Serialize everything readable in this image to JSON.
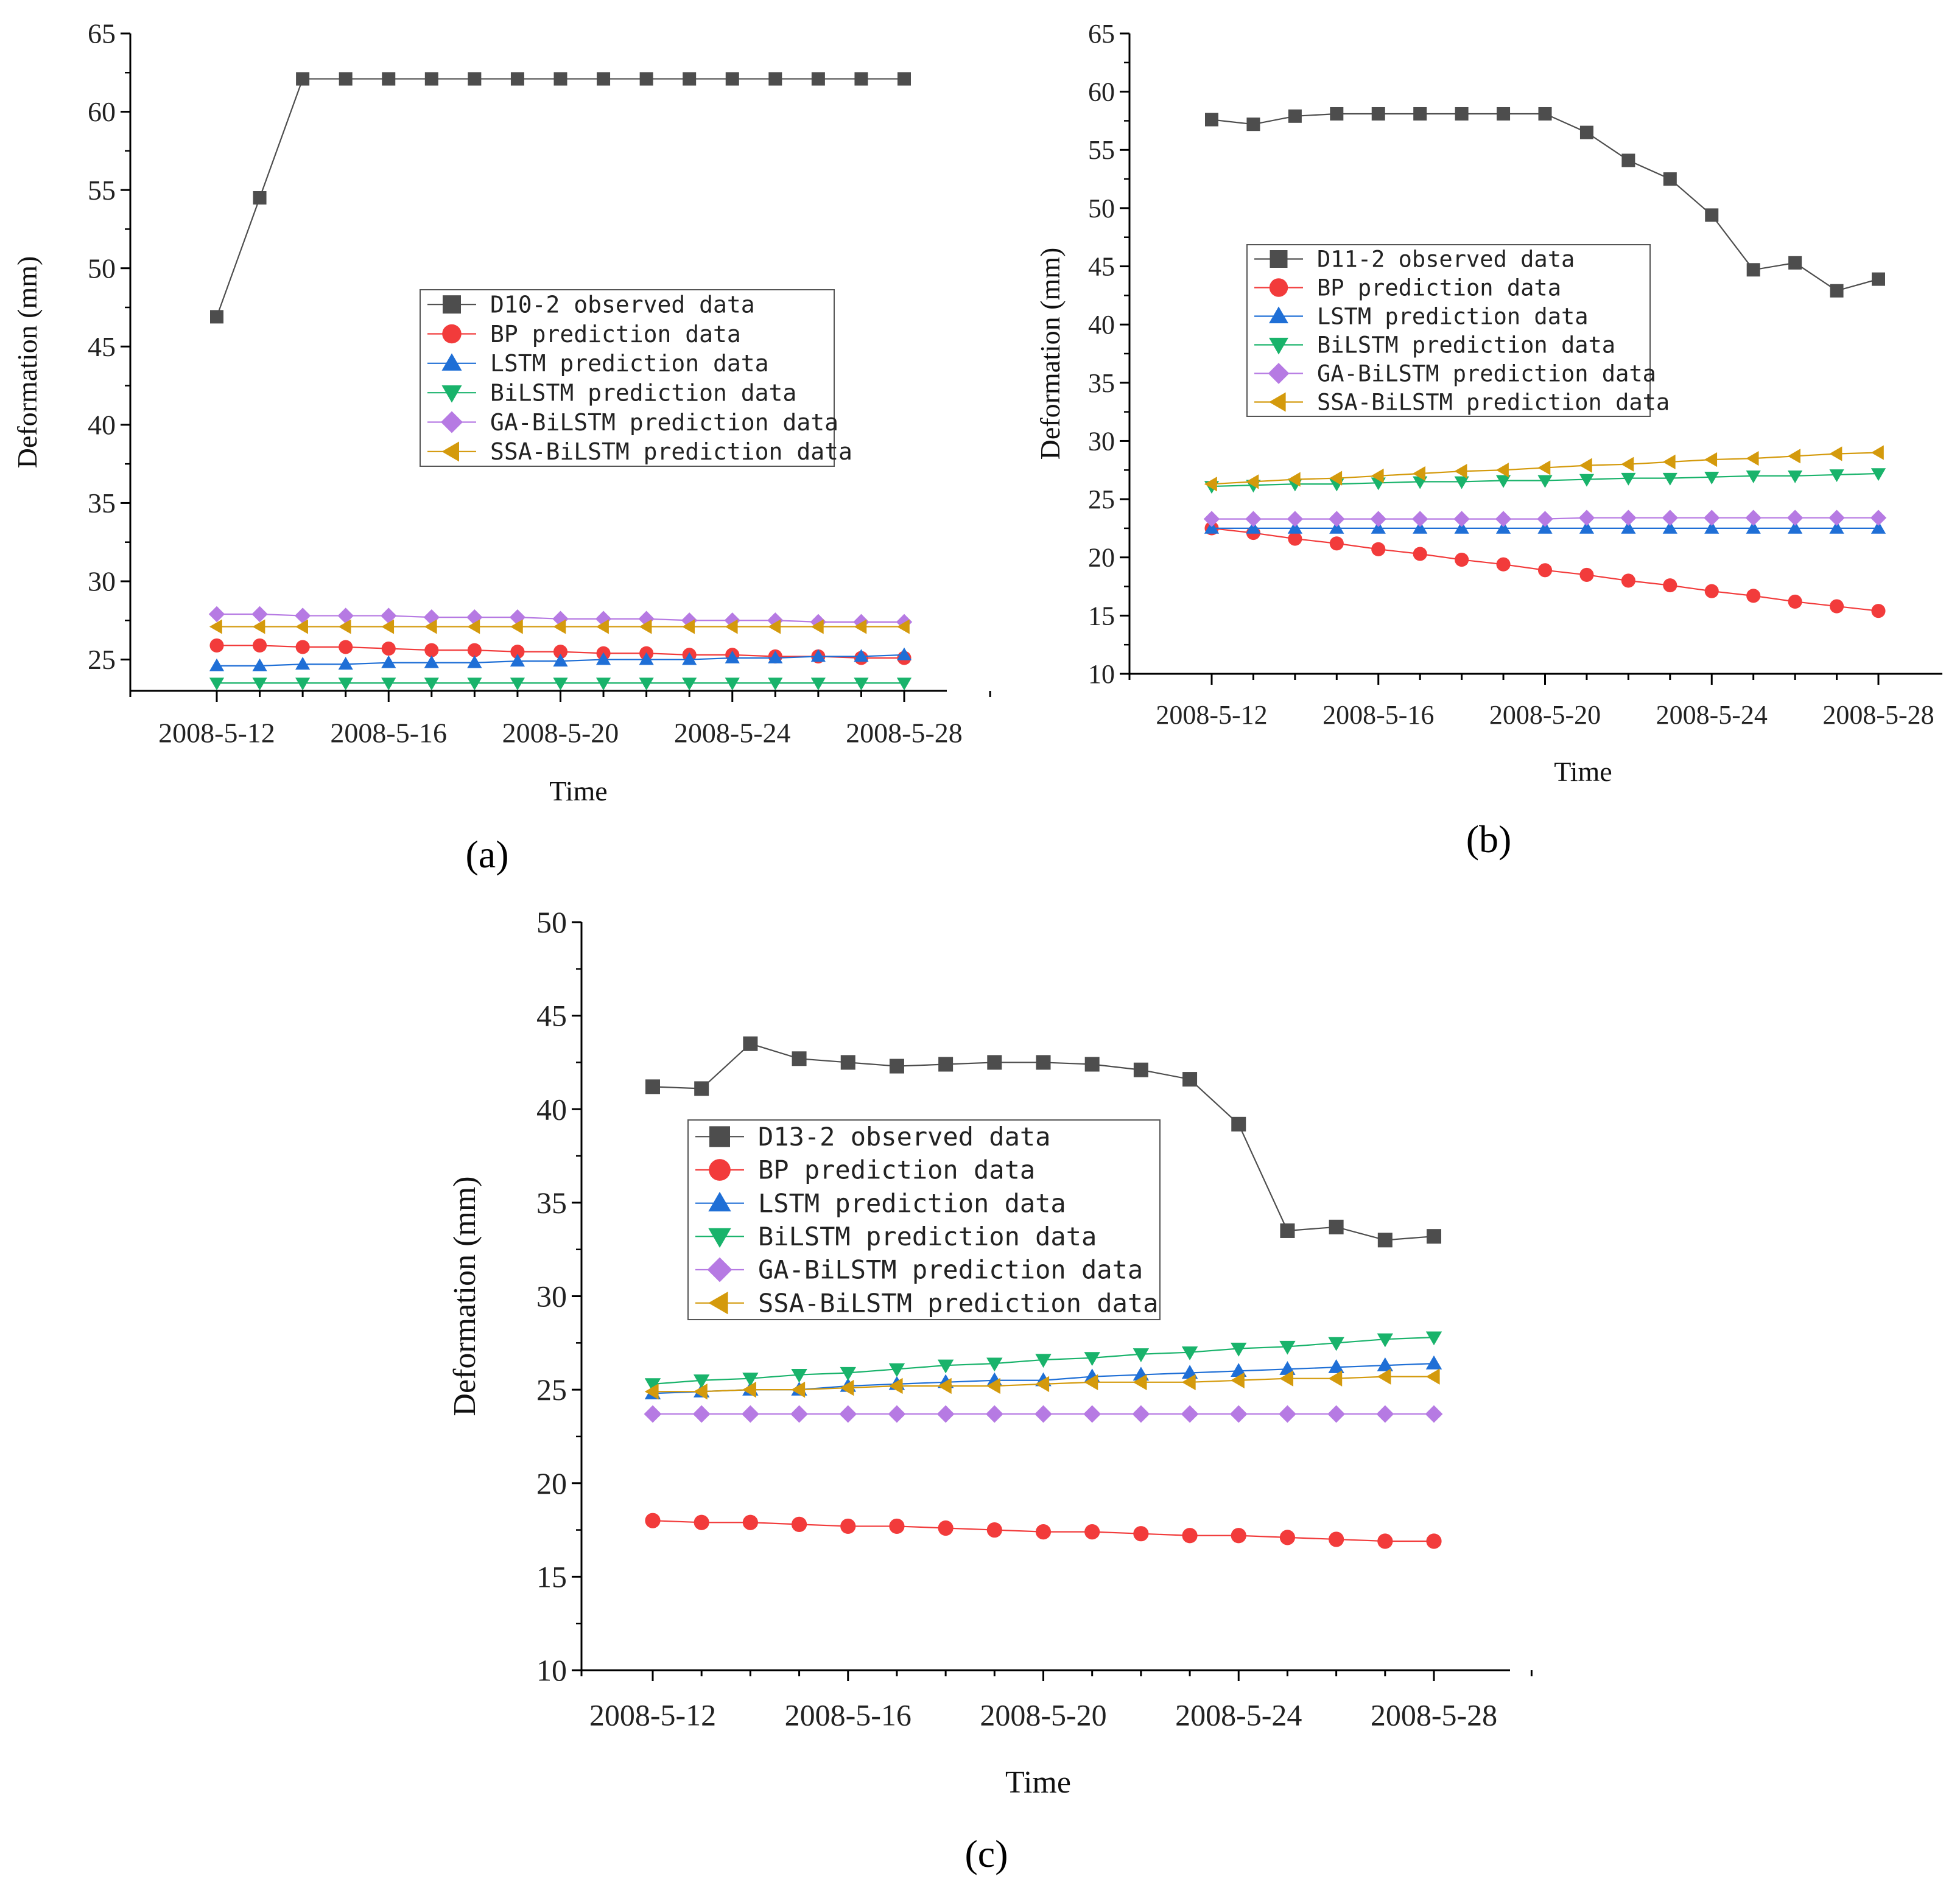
{
  "colors": {
    "observed": "#4d4d4d",
    "bp": "#f23b3b",
    "lstm": "#1f6fd6",
    "bilstm": "#19b36b",
    "ga_bilstm": "#b67ae3",
    "ssa_bilstm": "#d49a0c",
    "axis": "#000000"
  },
  "chart_data": [
    {
      "panel": "(a)",
      "type": "line",
      "xlabel": "Time",
      "ylabel": "Deformation (mm)",
      "ylim": [
        23,
        65
      ],
      "y_ticks": [
        25,
        30,
        35,
        40,
        45,
        50,
        55,
        60,
        65
      ],
      "x": [
        "2008-5-12",
        "2008-5-13",
        "2008-5-14",
        "2008-5-15",
        "2008-5-16",
        "2008-5-17",
        "2008-5-18",
        "2008-5-19",
        "2008-5-20",
        "2008-5-21",
        "2008-5-22",
        "2008-5-23",
        "2008-5-24",
        "2008-5-25",
        "2008-5-26",
        "2008-5-27",
        "2008-5-28"
      ],
      "x_tick_labels": [
        "2008-5-12",
        "2008-5-16",
        "2008-5-20",
        "2008-5-24",
        "2008-5-28"
      ],
      "legend_position": "center",
      "series": [
        {
          "key": "observed",
          "marker": "square",
          "name": "D10-2 observed data",
          "values": [
            46.9,
            54.5,
            62.1,
            62.1,
            62.1,
            62.1,
            62.1,
            62.1,
            62.1,
            62.1,
            62.1,
            62.1,
            62.1,
            62.1,
            62.1,
            62.1,
            62.1
          ]
        },
        {
          "key": "bp",
          "marker": "circle",
          "name": "BP prediction data",
          "values": [
            25.9,
            25.9,
            25.8,
            25.8,
            25.7,
            25.6,
            25.6,
            25.5,
            25.5,
            25.4,
            25.4,
            25.3,
            25.3,
            25.2,
            25.2,
            25.1,
            25.1
          ]
        },
        {
          "key": "lstm",
          "marker": "triangle-up",
          "name": "LSTM prediction data",
          "values": [
            24.6,
            24.6,
            24.7,
            24.7,
            24.8,
            24.8,
            24.8,
            24.9,
            24.9,
            25.0,
            25.0,
            25.0,
            25.1,
            25.1,
            25.2,
            25.2,
            25.3
          ]
        },
        {
          "key": "bilstm",
          "marker": "triangle-down",
          "name": "BiLSTM prediction data",
          "values": [
            23.5,
            23.5,
            23.5,
            23.5,
            23.5,
            23.5,
            23.5,
            23.5,
            23.5,
            23.5,
            23.5,
            23.5,
            23.5,
            23.5,
            23.5,
            23.5,
            23.5
          ]
        },
        {
          "key": "ga_bilstm",
          "marker": "diamond",
          "name": "GA-BiLSTM prediction data",
          "values": [
            27.9,
            27.9,
            27.8,
            27.8,
            27.8,
            27.7,
            27.7,
            27.7,
            27.6,
            27.6,
            27.6,
            27.5,
            27.5,
            27.5,
            27.4,
            27.4,
            27.4
          ]
        },
        {
          "key": "ssa_bilstm",
          "marker": "triangle-left",
          "name": "SSA-BiLSTM prediction data",
          "values": [
            27.1,
            27.1,
            27.1,
            27.1,
            27.1,
            27.1,
            27.1,
            27.1,
            27.1,
            27.1,
            27.1,
            27.1,
            27.1,
            27.1,
            27.1,
            27.1,
            27.1
          ]
        }
      ]
    },
    {
      "panel": "(b)",
      "type": "line",
      "xlabel": "Time",
      "ylabel": "Deformation (mm)",
      "ylim": [
        10,
        65
      ],
      "y_ticks": [
        10,
        15,
        20,
        25,
        30,
        35,
        40,
        45,
        50,
        55,
        60,
        65
      ],
      "x": [
        "2008-5-12",
        "2008-5-13",
        "2008-5-14",
        "2008-5-15",
        "2008-5-16",
        "2008-5-17",
        "2008-5-18",
        "2008-5-19",
        "2008-5-20",
        "2008-5-21",
        "2008-5-22",
        "2008-5-23",
        "2008-5-24",
        "2008-5-25",
        "2008-5-26",
        "2008-5-27",
        "2008-5-28"
      ],
      "x_tick_labels": [
        "2008-5-12",
        "2008-5-16",
        "2008-5-20",
        "2008-5-24",
        "2008-5-28"
      ],
      "legend_position": "upper-left",
      "series": [
        {
          "key": "observed",
          "marker": "square",
          "name": "D11-2 observed data",
          "values": [
            57.6,
            57.2,
            57.9,
            58.1,
            58.1,
            58.1,
            58.1,
            58.1,
            58.1,
            56.5,
            54.1,
            52.5,
            49.4,
            44.7,
            45.3,
            42.9,
            43.9
          ]
        },
        {
          "key": "bp",
          "marker": "circle",
          "name": "BP prediction data",
          "values": [
            22.5,
            22.1,
            21.6,
            21.2,
            20.7,
            20.3,
            19.8,
            19.4,
            18.9,
            18.5,
            18.0,
            17.6,
            17.1,
            16.7,
            16.2,
            15.8,
            15.4
          ]
        },
        {
          "key": "lstm",
          "marker": "triangle-up",
          "name": "LSTM prediction data",
          "values": [
            22.5,
            22.5,
            22.5,
            22.5,
            22.5,
            22.5,
            22.5,
            22.5,
            22.5,
            22.5,
            22.5,
            22.5,
            22.5,
            22.5,
            22.5,
            22.5,
            22.5
          ]
        },
        {
          "key": "bilstm",
          "marker": "triangle-down",
          "name": "BiLSTM prediction data",
          "values": [
            26.1,
            26.2,
            26.3,
            26.3,
            26.4,
            26.5,
            26.5,
            26.6,
            26.6,
            26.7,
            26.8,
            26.8,
            26.9,
            27.0,
            27.0,
            27.1,
            27.2
          ]
        },
        {
          "key": "ga_bilstm",
          "marker": "diamond",
          "name": "GA-BiLSTM prediction data",
          "values": [
            23.3,
            23.3,
            23.3,
            23.3,
            23.3,
            23.3,
            23.3,
            23.3,
            23.3,
            23.4,
            23.4,
            23.4,
            23.4,
            23.4,
            23.4,
            23.4,
            23.4
          ]
        },
        {
          "key": "ssa_bilstm",
          "marker": "triangle-left",
          "name": "SSA-BiLSTM prediction data",
          "values": [
            26.3,
            26.5,
            26.7,
            26.8,
            27.0,
            27.2,
            27.4,
            27.5,
            27.7,
            27.9,
            28.0,
            28.2,
            28.4,
            28.5,
            28.7,
            28.9,
            29.0
          ]
        }
      ]
    },
    {
      "panel": "(c)",
      "type": "line",
      "xlabel": "Time",
      "ylabel": "Deformation (mm)",
      "ylim": [
        10,
        50
      ],
      "y_ticks": [
        10,
        15,
        20,
        25,
        30,
        35,
        40,
        45,
        50
      ],
      "x": [
        "2008-5-12",
        "2008-5-13",
        "2008-5-14",
        "2008-5-15",
        "2008-5-16",
        "2008-5-17",
        "2008-5-18",
        "2008-5-19",
        "2008-5-20",
        "2008-5-21",
        "2008-5-22",
        "2008-5-23",
        "2008-5-24",
        "2008-5-25",
        "2008-5-26",
        "2008-5-27",
        "2008-5-28"
      ],
      "x_tick_labels": [
        "2008-5-12",
        "2008-5-16",
        "2008-5-20",
        "2008-5-24",
        "2008-5-28"
      ],
      "legend_position": "upper-left",
      "series": [
        {
          "key": "observed",
          "marker": "square",
          "name": "D13-2 observed data",
          "values": [
            41.2,
            41.1,
            43.5,
            42.7,
            42.5,
            42.3,
            42.4,
            42.5,
            42.5,
            42.4,
            42.1,
            41.6,
            39.2,
            33.5,
            33.7,
            33.0,
            33.2
          ]
        },
        {
          "key": "bp",
          "marker": "circle",
          "name": "BP prediction data",
          "values": [
            18.0,
            17.9,
            17.9,
            17.8,
            17.7,
            17.7,
            17.6,
            17.5,
            17.4,
            17.4,
            17.3,
            17.2,
            17.2,
            17.1,
            17.0,
            16.9,
            16.9
          ]
        },
        {
          "key": "lstm",
          "marker": "triangle-up",
          "name": "LSTM prediction data",
          "values": [
            24.8,
            24.9,
            25.0,
            25.0,
            25.2,
            25.3,
            25.4,
            25.5,
            25.5,
            25.7,
            25.8,
            25.9,
            26.0,
            26.1,
            26.2,
            26.3,
            26.4
          ]
        },
        {
          "key": "bilstm",
          "marker": "triangle-down",
          "name": "BiLSTM prediction data",
          "values": [
            25.3,
            25.5,
            25.6,
            25.8,
            25.9,
            26.1,
            26.3,
            26.4,
            26.6,
            26.7,
            26.9,
            27.0,
            27.2,
            27.3,
            27.5,
            27.7,
            27.8
          ]
        },
        {
          "key": "ga_bilstm",
          "marker": "diamond",
          "name": "GA-BiLSTM prediction data",
          "values": [
            23.7,
            23.7,
            23.7,
            23.7,
            23.7,
            23.7,
            23.7,
            23.7,
            23.7,
            23.7,
            23.7,
            23.7,
            23.7,
            23.7,
            23.7,
            23.7,
            23.7
          ]
        },
        {
          "key": "ssa_bilstm",
          "marker": "triangle-left",
          "name": "SSA-BiLSTM prediction data",
          "values": [
            24.9,
            24.9,
            25.0,
            25.0,
            25.1,
            25.2,
            25.2,
            25.2,
            25.3,
            25.4,
            25.4,
            25.4,
            25.5,
            25.6,
            25.6,
            25.7,
            25.7
          ]
        }
      ]
    }
  ]
}
